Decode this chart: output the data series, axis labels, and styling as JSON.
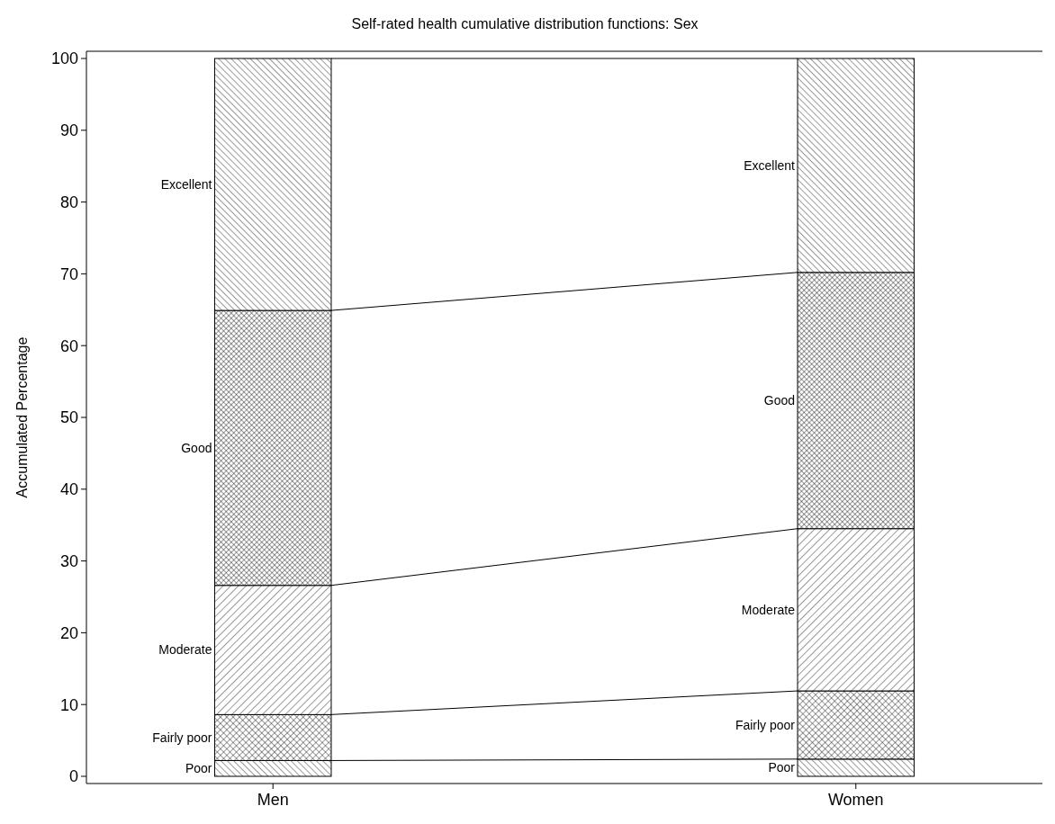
{
  "chart_data": {
    "type": "bar",
    "stacked": true,
    "title": "Self-rated health cumulative distribution functions: Sex",
    "ylabel": "Accumulated Percentage",
    "categories": [
      "Men",
      "Women"
    ],
    "series": [
      {
        "name": "Poor",
        "color": "#000000",
        "values": [
          2.2,
          2.4
        ]
      },
      {
        "name": "Fairly poor",
        "color": "#000000",
        "values": [
          6.4,
          9.5
        ]
      },
      {
        "name": "Moderate",
        "color": "#000000",
        "values": [
          18.0,
          22.6
        ]
      },
      {
        "name": "Good",
        "color": "#000000",
        "values": [
          38.3,
          35.7
        ]
      },
      {
        "name": "Excellent",
        "color": "#000000",
        "values": [
          35.1,
          29.8
        ]
      }
    ],
    "ylim": [
      0,
      100
    ],
    "yticks": [
      0,
      10,
      20,
      30,
      40,
      50,
      60,
      70,
      80,
      90,
      100
    ],
    "grid": false
  }
}
